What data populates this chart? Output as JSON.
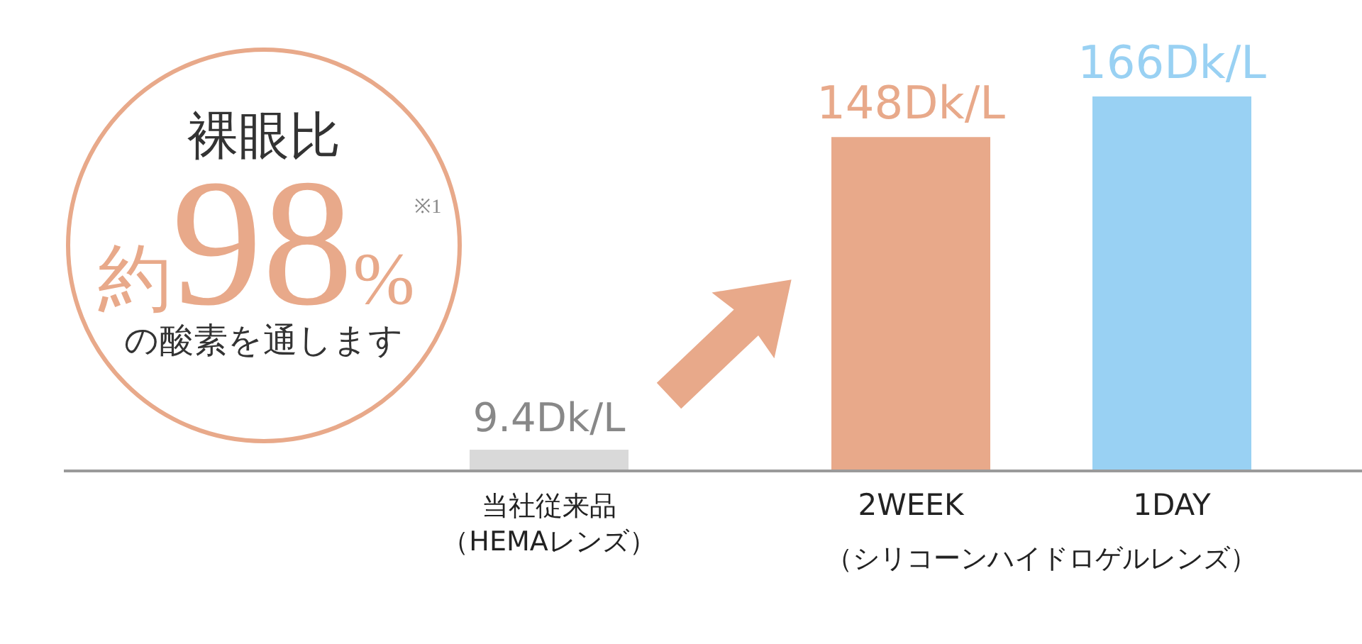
{
  "chart_data": {
    "type": "bar",
    "categories": [
      "当社従来品（HEMAレンズ）",
      "2WEEK",
      "1DAY"
    ],
    "values": [
      9.4,
      148,
      166
    ],
    "colors": [
      "#d9d9d9",
      "#e8a98a",
      "#99d1f3"
    ],
    "value_labels": [
      "9.4Dk/L",
      "148Dk/L",
      "166Dk/L"
    ],
    "tick_labels": "x",
    "annotations": [
      "裸眼比",
      "約98%$^{※1}$",
      "の酸素を通します",
      "（シリコーンハイドロゲルレンズ）"
    ]
  }
}
